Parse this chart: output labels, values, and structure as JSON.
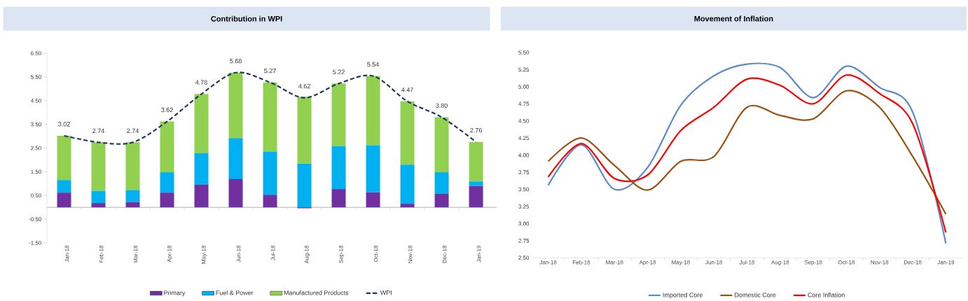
{
  "chart_data": [
    {
      "type": "bar",
      "title": "Contribution in WPI",
      "stacked": true,
      "legend": "bottom",
      "categories": [
        "Jan-18",
        "Feb-18",
        "Mar-18",
        "Apr-18",
        "May-18",
        "Jun-18",
        "Jul-18",
        "Aug-18",
        "Sep-18",
        "Oct-18",
        "Nov-18",
        "Dec-18",
        "Jan-19"
      ],
      "ylim": [
        -1.5,
        6.5
      ],
      "yticks": [
        {
          "value": -1.5,
          "label": "-1.50"
        },
        {
          "value": -0.5,
          "label": "-0.50"
        },
        {
          "value": 0.5,
          "label": "0.50"
        },
        {
          "value": 1.5,
          "label": "1.50"
        },
        {
          "value": 2.5,
          "label": "2.50"
        },
        {
          "value": 3.5,
          "label": "3.50"
        },
        {
          "value": 4.5,
          "label": "4.50"
        },
        {
          "value": 5.5,
          "label": "5.50"
        },
        {
          "value": 6.5,
          "label": "6.50"
        }
      ],
      "series": [
        {
          "name": "Primary",
          "color": "#7030a0",
          "values": [
            0.62,
            0.18,
            0.22,
            0.62,
            0.96,
            1.19,
            0.53,
            -0.04,
            0.77,
            0.63,
            0.15,
            0.57,
            0.9
          ]
        },
        {
          "name": "Fuel & Power",
          "color": "#00b0f0",
          "values": [
            0.53,
            0.51,
            0.51,
            0.86,
            1.32,
            1.73,
            1.82,
            1.84,
            1.81,
            1.99,
            1.65,
            0.91,
            0.19
          ]
        },
        {
          "name": "Manufactured Products",
          "color": "#92d050",
          "values": [
            1.87,
            2.05,
            2.01,
            2.14,
            2.5,
            2.76,
            2.92,
            2.82,
            2.64,
            2.92,
            2.67,
            2.32,
            1.67
          ]
        },
        {
          "name": "WPI",
          "type": "line",
          "line_style": "dashed",
          "color": "#1f3864",
          "values": [
            3.02,
            2.74,
            2.74,
            3.62,
            4.78,
            5.68,
            5.27,
            4.62,
            5.22,
            5.54,
            4.47,
            3.8,
            2.76
          ],
          "value_labels": [
            "3.02",
            "2.74",
            "2.74",
            "3.62",
            "4.78",
            "5.68",
            "5.27",
            "4.62",
            "5.22",
            "5.54",
            "4.47",
            "3.80",
            "2.76"
          ]
        }
      ]
    },
    {
      "type": "line",
      "title": "Movement of Inflation",
      "legend": "bottom",
      "categories": [
        "Jan-18",
        "Feb-18",
        "Mar-18",
        "Apr-18",
        "May-18",
        "Jun-18",
        "Jul-18",
        "Aug-18",
        "Sep-18",
        "Oct-18",
        "Nov-18",
        "Dec-18",
        "Jan-19"
      ],
      "ylim": [
        2.5,
        5.5
      ],
      "yticks": [
        {
          "value": 2.5,
          "label": "2.50"
        },
        {
          "value": 2.75,
          "label": "2.75"
        },
        {
          "value": 3.0,
          "label": "3.00"
        },
        {
          "value": 3.25,
          "label": "3.25"
        },
        {
          "value": 3.5,
          "label": "3.50"
        },
        {
          "value": 3.75,
          "label": "3.75"
        },
        {
          "value": 4.0,
          "label": "4.00"
        },
        {
          "value": 4.25,
          "label": "4.25"
        },
        {
          "value": 4.5,
          "label": "4.50"
        },
        {
          "value": 4.75,
          "label": "4.75"
        },
        {
          "value": 5.0,
          "label": "5.00"
        },
        {
          "value": 5.25,
          "label": "5.25"
        },
        {
          "value": 5.5,
          "label": "5.50"
        }
      ],
      "series": [
        {
          "name": "Imported Core",
          "color": "#5b8ac6",
          "values": [
            3.56,
            4.15,
            3.5,
            3.82,
            4.73,
            5.16,
            5.33,
            5.28,
            4.84,
            5.3,
            4.99,
            4.63,
            2.71
          ]
        },
        {
          "name": "Domestic Core",
          "color": "#9c5211",
          "values": [
            3.91,
            4.25,
            3.85,
            3.49,
            3.91,
            3.98,
            4.7,
            4.58,
            4.53,
            4.94,
            4.7,
            3.98,
            3.14
          ]
        },
        {
          "name": "Core Inflation",
          "color": "#ff0000",
          "values": [
            3.68,
            4.17,
            3.66,
            3.71,
            4.36,
            4.7,
            5.11,
            5.02,
            4.75,
            5.17,
            4.9,
            4.46,
            2.87
          ]
        }
      ]
    }
  ]
}
